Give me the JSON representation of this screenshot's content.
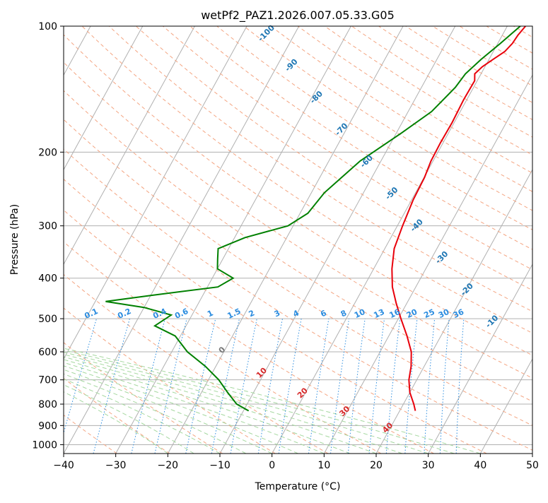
{
  "chart_data": {
    "type": "line",
    "title": "wetPf2_PAZ1.2026.007.05.33.G05",
    "xlabel": "Temperature (°C)",
    "ylabel": "Pressure (hPa)",
    "xlim": [
      -40,
      50
    ],
    "ylim": [
      1050,
      100
    ],
    "y_scale": "log",
    "grid": true,
    "x_ticks": [
      -40,
      -30,
      -20,
      -10,
      0,
      10,
      20,
      30,
      40,
      50
    ],
    "y_ticks": [
      100,
      200,
      300,
      400,
      500,
      600,
      700,
      800,
      900,
      1000
    ],
    "x_tick_labels": [
      "−40",
      "−30",
      "−20",
      "−10",
      "0",
      "10",
      "20",
      "30",
      "40",
      "50"
    ],
    "y_tick_labels": [
      "100",
      "200",
      "300",
      "400",
      "500",
      "600",
      "700",
      "800",
      "900",
      "1000"
    ],
    "series": [
      {
        "color": "#e8000b",
        "points": [
          {
            "p": 100,
            "t": 3.5
          },
          {
            "p": 105,
            "t": 3.0
          },
          {
            "p": 110,
            "t": 2.8
          },
          {
            "p": 115,
            "t": 2.2
          },
          {
            "p": 120,
            "t": 0.8
          },
          {
            "p": 125,
            "t": -0.5
          },
          {
            "p": 130,
            "t": -1.2
          },
          {
            "p": 135,
            "t": -0.5
          },
          {
            "p": 150,
            "t": -0.6
          },
          {
            "p": 170,
            "t": -0.4
          },
          {
            "p": 190,
            "t": -0.5
          },
          {
            "p": 210,
            "t": -0.4
          },
          {
            "p": 230,
            "t": 0.1
          },
          {
            "p": 260,
            "t": 0.3
          },
          {
            "p": 300,
            "t": 1.0
          },
          {
            "p": 340,
            "t": 1.8
          },
          {
            "p": 380,
            "t": 3.5
          },
          {
            "p": 420,
            "t": 5.5
          },
          {
            "p": 460,
            "t": 8.0
          },
          {
            "p": 500,
            "t": 10.5
          },
          {
            "p": 550,
            "t": 13.5
          },
          {
            "p": 600,
            "t": 16.0
          },
          {
            "p": 650,
            "t": 17.5
          },
          {
            "p": 700,
            "t": 18.5
          },
          {
            "p": 750,
            "t": 20.0
          },
          {
            "p": 800,
            "t": 22.0
          },
          {
            "p": 830,
            "t": 23.0
          }
        ]
      },
      {
        "color": "#008000",
        "points": [
          {
            "p": 100,
            "t": 2.5
          },
          {
            "p": 110,
            "t": 0.5
          },
          {
            "p": 120,
            "t": -1.5
          },
          {
            "p": 130,
            "t": -3.0
          },
          {
            "p": 140,
            "t": -3.5
          },
          {
            "p": 160,
            "t": -5.5
          },
          {
            "p": 180,
            "t": -9.0
          },
          {
            "p": 210,
            "t": -14.0
          },
          {
            "p": 250,
            "t": -17.5
          },
          {
            "p": 280,
            "t": -18.5
          },
          {
            "p": 300,
            "t": -21.0
          },
          {
            "p": 320,
            "t": -28.0
          },
          {
            "p": 340,
            "t": -32.0
          },
          {
            "p": 360,
            "t": -31.0
          },
          {
            "p": 380,
            "t": -30.0
          },
          {
            "p": 400,
            "t": -26.0
          },
          {
            "p": 420,
            "t": -28.0
          },
          {
            "p": 440,
            "t": -40.0
          },
          {
            "p": 455,
            "t": -48.0
          },
          {
            "p": 470,
            "t": -40.0
          },
          {
            "p": 490,
            "t": -34.0
          },
          {
            "p": 520,
            "t": -36.0
          },
          {
            "p": 550,
            "t": -31.0
          },
          {
            "p": 600,
            "t": -27.0
          },
          {
            "p": 650,
            "t": -22.0
          },
          {
            "p": 700,
            "t": -18.0
          },
          {
            "p": 750,
            "t": -15.0
          },
          {
            "p": 800,
            "t": -12.0
          },
          {
            "p": 830,
            "t": -9.0
          }
        ]
      }
    ],
    "annotations": {
      "dry_adiabats": {
        "color": "#f4a582",
        "labels": [
          "-100",
          "-90",
          "-80",
          "-70",
          "-60",
          "-50",
          "-40",
          "-30",
          "-20",
          "-10",
          "0",
          "10",
          "20",
          "30",
          "40"
        ]
      },
      "mixing_ratios": {
        "color": "#2b8cdf",
        "labels": [
          "0.1",
          "0.2",
          "0.4",
          "0.6",
          "1",
          "1.5",
          "2",
          "3",
          "4",
          "6",
          "8",
          "10",
          "13",
          "16",
          "20",
          "25",
          "30",
          "36"
        ]
      }
    }
  }
}
